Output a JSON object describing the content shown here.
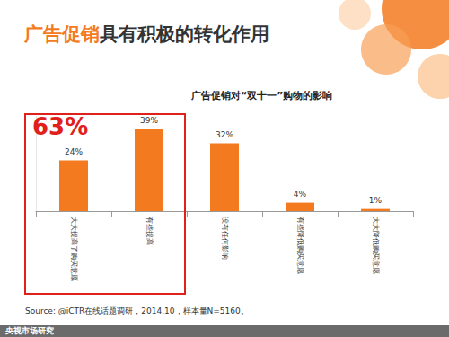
{
  "chart_data": {
    "type": "bar",
    "title": "广告促销具有积极的转化作用",
    "subtitle": "广告促销对“双十一”购物的影响",
    "categories": [
      "大大提高了购买意愿",
      "有些提高",
      "没有任何影响",
      "有些降低购买意愿",
      "大大降低购买意愿"
    ],
    "values": [
      24,
      39,
      32,
      4,
      1
    ],
    "value_labels": [
      "24%",
      "39%",
      "32%",
      "4%",
      "1%"
    ],
    "color": "#f47a20",
    "ylim": [
      0,
      45
    ],
    "grid": false,
    "data_labels": true,
    "tick_labels": "x",
    "annotation": "63%",
    "source": "Source: @iCTR在线话题调研，2014.10，样本量N=5160。",
    "footer": "央视市场研究"
  }
}
